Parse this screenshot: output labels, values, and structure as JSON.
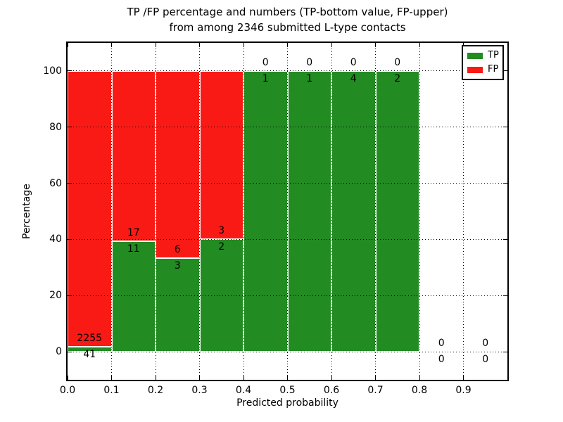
{
  "title": {
    "line1": "TP /FP percentage and numbers (TP-bottom value, FP-upper)",
    "line2": "from among 2346 submitted L-type contacts"
  },
  "chart_data": {
    "type": "bar",
    "stacked": true,
    "title": "TP /FP percentage and numbers (TP-bottom value, FP-upper) from among 2346 submitted L-type contacts",
    "xlabel": "Predicted probability",
    "ylabel": "Percentage",
    "xlim": [
      0.0,
      1.0
    ],
    "ylim": [
      -10,
      110
    ],
    "x_ticks": [
      "0.0",
      "0.1",
      "0.2",
      "0.3",
      "0.4",
      "0.5",
      "0.6",
      "0.7",
      "0.8",
      "0.9"
    ],
    "y_ticks": [
      0,
      20,
      40,
      60,
      80,
      100
    ],
    "grid": "dotted",
    "grid_on_top": true,
    "total_contacts": 2346,
    "colors": {
      "tp": "#228B22",
      "fp": "#FA1A15"
    },
    "legend": {
      "position": "upper right",
      "entries": [
        {
          "label": "TP",
          "color": "#228B22"
        },
        {
          "label": "FP",
          "color": "#FA1A15"
        }
      ]
    },
    "bins": [
      {
        "range": [
          0.0,
          0.1
        ],
        "tp": 41,
        "fp": 2255
      },
      {
        "range": [
          0.1,
          0.2
        ],
        "tp": 11,
        "fp": 17
      },
      {
        "range": [
          0.2,
          0.3
        ],
        "tp": 3,
        "fp": 6
      },
      {
        "range": [
          0.3,
          0.4
        ],
        "tp": 2,
        "fp": 3
      },
      {
        "range": [
          0.4,
          0.5
        ],
        "tp": 1,
        "fp": 0
      },
      {
        "range": [
          0.5,
          0.6
        ],
        "tp": 1,
        "fp": 0
      },
      {
        "range": [
          0.6,
          0.7
        ],
        "tp": 4,
        "fp": 0
      },
      {
        "range": [
          0.7,
          0.8
        ],
        "tp": 2,
        "fp": 0
      },
      {
        "range": [
          0.8,
          0.9
        ],
        "tp": 0,
        "fp": 0
      },
      {
        "range": [
          0.9,
          1.0
        ],
        "tp": 0,
        "fp": 0
      }
    ]
  }
}
